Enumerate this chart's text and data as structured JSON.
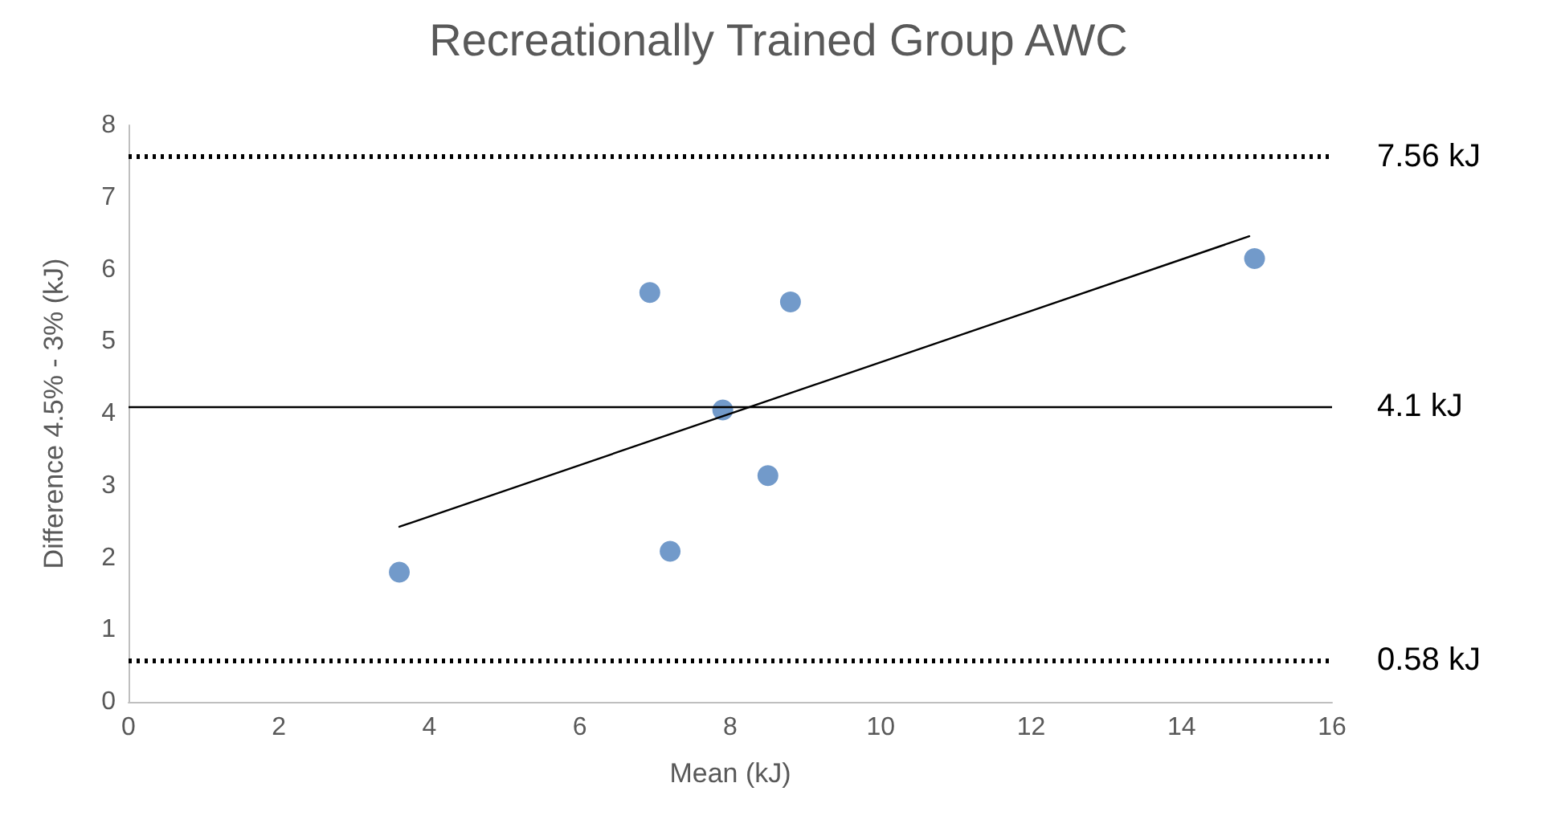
{
  "chart_data": {
    "type": "scatter",
    "title": "Recreationally Trained Group AWC",
    "xlabel": "Mean (kJ)",
    "ylabel": "Difference 4.5% - 3% (kJ)",
    "xlim": [
      0,
      16
    ],
    "xticks": [
      0,
      2,
      4,
      6,
      8,
      10,
      12,
      14,
      16
    ],
    "ylim": [
      0,
      8
    ],
    "yticks": [
      0,
      1,
      2,
      3,
      4,
      5,
      6,
      7,
      8
    ],
    "grid": false,
    "marker": "circle",
    "series": [
      {
        "color": "#4f81bd",
        "x": [
          3.6,
          6.93,
          7.2,
          7.9,
          8.5,
          8.8,
          14.97
        ],
        "values": [
          1.8,
          5.68,
          2.09,
          4.05,
          3.14,
          5.55,
          6.15
        ]
      },
      {
        "type": "line",
        "color": "#000000",
        "marker": "none",
        "line_style": "solid",
        "x": [
          3.6,
          14.9
        ],
        "values": [
          2.43,
          6.46
        ]
      }
    ],
    "ref_lines": [
      {
        "axis": "y",
        "value": 7.56,
        "label": "7.56 kJ",
        "color": "#000000",
        "line_style": "dotted"
      },
      {
        "axis": "y",
        "value": 4.1,
        "label": "4.1 kJ",
        "color": "#000000",
        "line_style": "solid"
      },
      {
        "axis": "y",
        "value": 0.58,
        "label": "0.58 kJ",
        "color": "#000000",
        "line_style": "dotted"
      }
    ]
  }
}
